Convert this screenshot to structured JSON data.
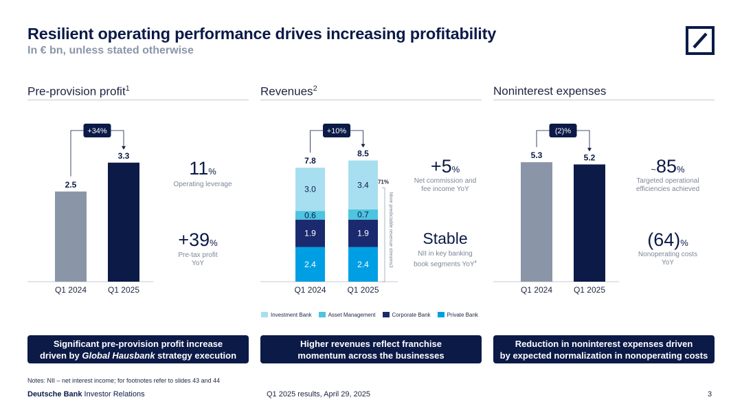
{
  "header": {
    "title": "Resilient operating performance drives increasing profitability",
    "subtitle": "In € bn, unless stated otherwise"
  },
  "colors": {
    "navy": "#0b1a47",
    "gray": "#8a96a8",
    "light_blue": "#a7dff0",
    "mid_blue": "#4dc4e0",
    "corp_navy": "#1b2a6e",
    "private_blue": "#009fe3"
  },
  "sections": [
    {
      "title": "Pre-provision profit",
      "footnote": "1"
    },
    {
      "title": "Revenues",
      "footnote": "2"
    },
    {
      "title": "Noninterest expenses",
      "footnote": ""
    }
  ],
  "chart_data": [
    {
      "type": "bar",
      "title": "Pre-provision profit",
      "categories": [
        "Q1 2024",
        "Q1 2025"
      ],
      "values": [
        2.5,
        3.3
      ],
      "value_labels": [
        "2.5",
        "3.3"
      ],
      "bar_colors": [
        "#8a96a8",
        "#0b1a47"
      ],
      "change_label": "+34%",
      "ylim": [
        0,
        4.0
      ]
    },
    {
      "type": "bar",
      "stacked": true,
      "title": "Revenues",
      "categories": [
        "Q1 2024",
        "Q1 2025"
      ],
      "series": [
        {
          "name": "Private Bank",
          "values": [
            2.4,
            2.4
          ],
          "labels": [
            "2.4",
            "2.4"
          ],
          "color": "#009fe3",
          "text_color": "#ffffff"
        },
        {
          "name": "Corporate Bank",
          "values": [
            1.9,
            1.9
          ],
          "labels": [
            "1.9",
            "1.9"
          ],
          "color": "#1b2a6e",
          "text_color": "#ffffff"
        },
        {
          "name": "Asset Management",
          "values": [
            0.6,
            0.7
          ],
          "labels": [
            "0.6",
            "0.7"
          ],
          "color": "#4dc4e0",
          "text_color": "#0b1a47"
        },
        {
          "name": "Investment Bank",
          "values": [
            3.0,
            3.4
          ],
          "labels": [
            "3.0",
            "3.4"
          ],
          "color": "#a7dff0",
          "text_color": "#0b1a47"
        }
      ],
      "totals": [
        "7.8",
        "8.5"
      ],
      "change_label": "+10%",
      "side_value": "71%",
      "side_label": "More predictable revenue streams",
      "side_footnote": "3",
      "ylim": [
        0,
        10.0
      ]
    },
    {
      "type": "bar",
      "title": "Noninterest expenses",
      "categories": [
        "Q1 2024",
        "Q1 2025"
      ],
      "values": [
        5.3,
        5.2
      ],
      "value_labels": [
        "5.3",
        "5.2"
      ],
      "bar_colors": [
        "#8a96a8",
        "#0b1a47"
      ],
      "change_label": "(2)%",
      "ylim": [
        0,
        6.4
      ]
    }
  ],
  "kpis": {
    "ppp_1_value": "11",
    "ppp_1_unit": "%",
    "ppp_1_label": "Operating leverage",
    "ppp_2_value": "+39",
    "ppp_2_unit": "%",
    "ppp_2_label_1": "Pre-tax profit",
    "ppp_2_label_2": "YoY",
    "rev_1_value": "+5",
    "rev_1_unit": "%",
    "rev_1_label_1": "Net commission and",
    "rev_1_label_2": "fee income YoY",
    "rev_2_value": "Stable",
    "rev_2_label_1": "NII in key banking",
    "rev_2_label_2": "book segments YoY",
    "rev_2_footnote": "4",
    "exp_1_prefix": "~",
    "exp_1_value": "85",
    "exp_1_unit": "%",
    "exp_1_label_1": "Targeted operational",
    "exp_1_label_2": "efficiencies achieved",
    "exp_2_value": "(64)",
    "exp_2_unit": "%",
    "exp_2_label_1": "Nonoperating costs",
    "exp_2_label_2": "YoY"
  },
  "legend": [
    "Investment Bank",
    "Asset Management",
    "Corporate Bank",
    "Private Bank"
  ],
  "banners": {
    "b1_line1": "Significant pre-provision profit increase",
    "b1_line2_pre": "driven by ",
    "b1_line2_em": "Global Hausbank",
    "b1_line2_post": " strategy execution",
    "b2_line1": "Higher revenues reflect franchise",
    "b2_line2": "momentum across the businesses",
    "b3_line1": "Reduction in noninterest expenses driven",
    "b3_line2": "by expected normalization in nonoperating costs"
  },
  "footer": {
    "notes": "Notes: NII – net interest income; for footnotes refer to slides 43 and 44",
    "brand_bold": "Deutsche Bank",
    "brand_rest": " Investor Relations",
    "center": "Q1 2025 results, April 29, 2025",
    "page": "3"
  }
}
